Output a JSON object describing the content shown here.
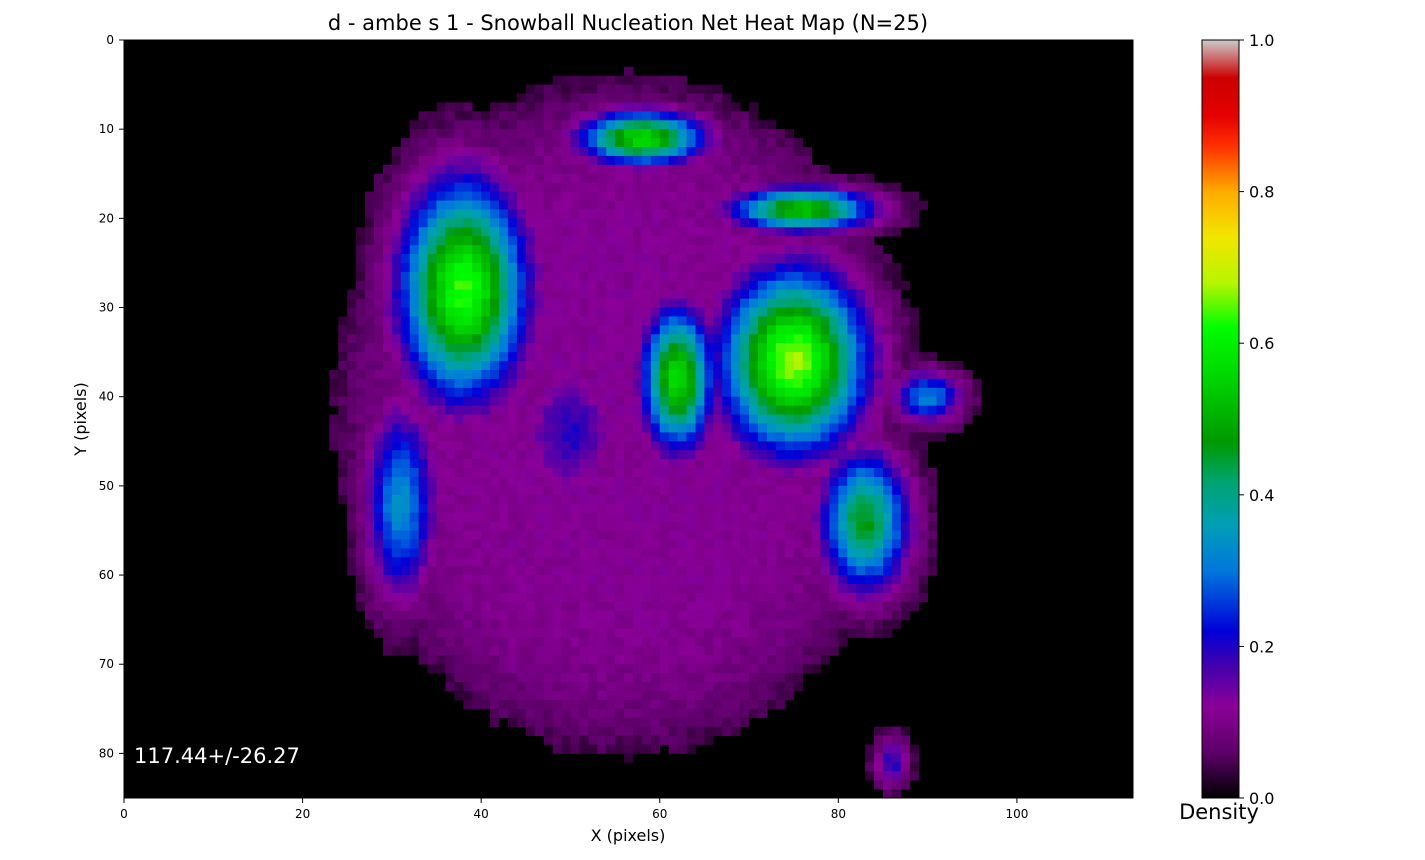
{
  "chart_data": {
    "type": "heatmap",
    "title": "d - ambe s 1 - Snowball Nucleation Net Heat Map (N=25)",
    "xlabel": "X (pixels)",
    "ylabel": "Y (pixels)",
    "xlim": [
      0,
      113
    ],
    "ylim": [
      85,
      0
    ],
    "x_ticks": [
      0,
      20,
      40,
      60,
      80,
      100
    ],
    "y_ticks": [
      0,
      10,
      20,
      30,
      40,
      50,
      60,
      70,
      80
    ],
    "x_tick_labels": [
      "0",
      "20",
      "40",
      "60",
      "80",
      "100"
    ],
    "y_tick_labels": [
      "0",
      "10",
      "20",
      "30",
      "40",
      "50",
      "60",
      "70",
      "80"
    ],
    "annotation": "117.44+/-26.27",
    "colorbar": {
      "label": "Density",
      "range": [
        0.0,
        1.0
      ],
      "ticks": [
        0.0,
        0.2,
        0.4,
        0.6,
        0.8,
        1.0
      ],
      "tick_labels": [
        "0.0",
        "0.2",
        "0.4",
        "0.6",
        "0.8",
        "1.0"
      ],
      "colormap": "nipy_spectral"
    },
    "regions": [
      {
        "name": "left-lobe-core",
        "center": [
          38,
          28
        ],
        "radius": [
          7,
          12
        ],
        "peak": 0.62
      },
      {
        "name": "left-lobe-tail",
        "center": [
          31,
          52
        ],
        "radius": [
          4,
          11
        ],
        "peak": 0.32
      },
      {
        "name": "top-arc-left",
        "center": [
          58,
          11
        ],
        "radius": [
          7,
          3
        ],
        "peak": 0.55
      },
      {
        "name": "top-arc-right",
        "center": [
          76,
          19
        ],
        "radius": [
          8,
          2.5
        ],
        "peak": 0.52
      },
      {
        "name": "center-small-lobe",
        "center": [
          62,
          38
        ],
        "radius": [
          4,
          8
        ],
        "peak": 0.55
      },
      {
        "name": "right-lobe-core",
        "center": [
          75,
          36
        ],
        "radius": [
          8,
          10
        ],
        "peak": 0.66
      },
      {
        "name": "right-lobe-tail",
        "center": [
          83,
          54
        ],
        "radius": [
          5,
          8
        ],
        "peak": 0.45
      },
      {
        "name": "center-blue-patch",
        "center": [
          50,
          44
        ],
        "radius": [
          6,
          8
        ],
        "peak": 0.18
      },
      {
        "name": "right-side-patch",
        "center": [
          90,
          40
        ],
        "radius": [
          4,
          3
        ],
        "peak": 0.3
      },
      {
        "name": "bottom-right-spot",
        "center": [
          86,
          81
        ],
        "radius": [
          2,
          3
        ],
        "peak": 0.18
      },
      {
        "name": "outer-halo",
        "center": [
          56,
          42
        ],
        "radius": [
          34,
          40
        ],
        "peak": 0.1
      }
    ]
  }
}
